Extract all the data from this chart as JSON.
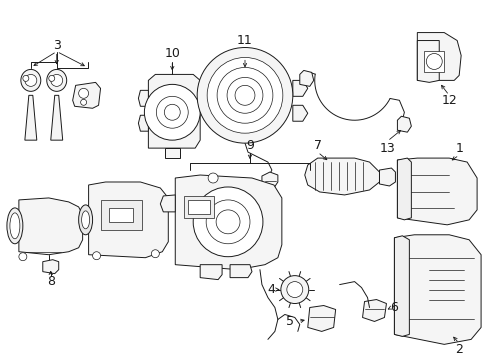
{
  "background_color": "#ffffff",
  "line_color": "#1a1a1a",
  "figsize": [
    4.89,
    3.6
  ],
  "dpi": 100,
  "border_color": "#cccccc",
  "font_size": 9,
  "small_font": 7
}
